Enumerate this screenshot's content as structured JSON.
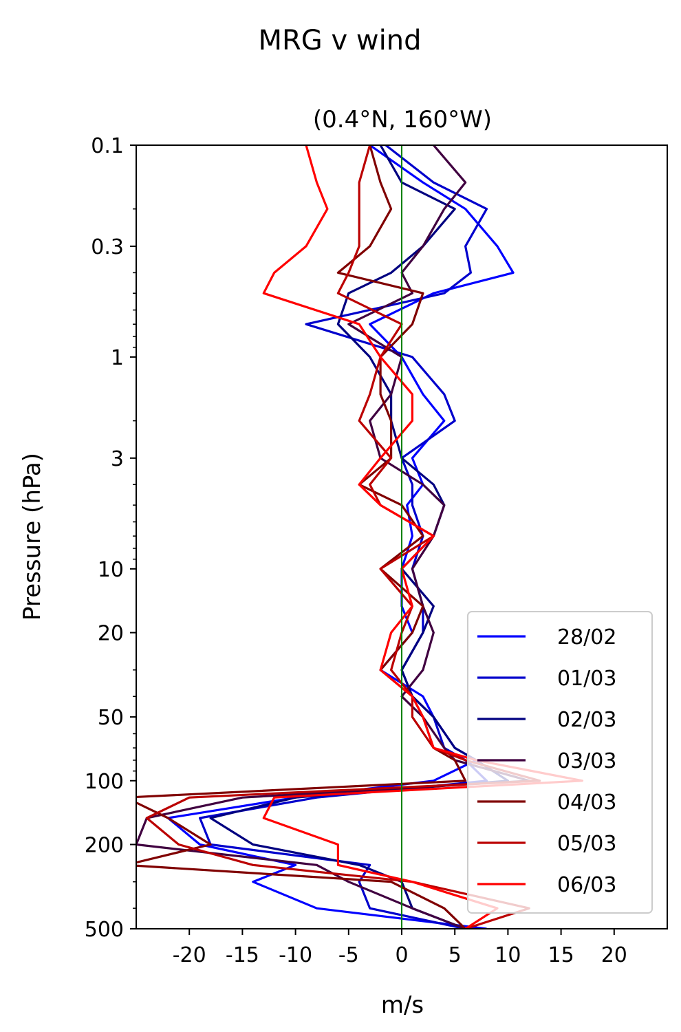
{
  "chart_data": {
    "type": "line",
    "title": "MRG v wind",
    "subtitle": "(0.4°N, 160°W)",
    "xlabel": "m/s",
    "ylabel": "Pressure (hPa)",
    "xlim": [
      -25,
      25
    ],
    "ylim": [
      500,
      0.1
    ],
    "yscale": "log",
    "xticks": [
      -20,
      -15,
      -10,
      -5,
      0,
      5,
      10,
      15,
      20
    ],
    "xtick_labels": [
      "-20",
      "-15",
      "-10",
      "-5",
      "0",
      "5",
      "10",
      "15",
      "20"
    ],
    "yticks": [
      0.1,
      0.3,
      1,
      3,
      10,
      20,
      50,
      100,
      200,
      500
    ],
    "ytick_labels": [
      "0.1",
      "0.3",
      "1",
      "3",
      "10",
      "20",
      "50",
      "100",
      "200",
      "500"
    ],
    "reference_line": {
      "x": 0,
      "color": "#008000"
    },
    "legend_position": "lower-right",
    "pressure_levels": [
      0.1,
      0.15,
      0.2,
      0.3,
      0.4,
      0.5,
      0.7,
      1,
      1.5,
      2,
      3,
      4,
      5,
      7,
      10,
      15,
      20,
      30,
      40,
      50,
      70,
      80,
      100,
      120,
      150,
      200,
      250,
      300,
      400,
      500
    ],
    "series": [
      {
        "name": "28/02",
        "color": "#0000ff",
        "values": [
          -3,
          2,
          6,
          9,
          10.5,
          3,
          -3,
          0,
          2,
          4,
          1,
          2,
          0.5,
          1,
          0,
          0,
          1,
          -2,
          2,
          3,
          5,
          7,
          3,
          -10,
          -22,
          -19,
          -10,
          -14,
          -8,
          8
        ]
      },
      {
        "name": "01/03",
        "color": "#0000cc",
        "values": [
          -1.5,
          3,
          8,
          6,
          6.5,
          4,
          -9,
          1,
          4,
          5,
          0,
          1,
          1,
          2,
          1,
          2,
          2,
          0,
          1,
          3,
          4,
          6,
          8,
          -8,
          -19,
          -18,
          -3,
          -4,
          -3,
          6
        ]
      },
      {
        "name": "02/03",
        "color": "#000080",
        "values": [
          -2,
          0,
          5,
          2,
          -1,
          -5,
          -6,
          -3,
          -1,
          -1,
          0,
          3,
          4,
          3,
          0,
          3,
          2,
          0,
          1,
          3,
          5,
          7,
          10,
          -10,
          -18,
          -14,
          -4,
          0,
          1,
          6
        ]
      },
      {
        "name": "03/03",
        "color": "#400040",
        "values": [
          3,
          6,
          4,
          2,
          0,
          1,
          -5,
          0,
          -1,
          -3,
          -2,
          2,
          4,
          3,
          1,
          2,
          3,
          2,
          0,
          2,
          4,
          5,
          12,
          -15,
          -24,
          -25,
          -8,
          -5,
          1,
          6
        ]
      },
      {
        "name": "04/03",
        "color": "#800000",
        "values": [
          -3,
          -2,
          -1,
          -3,
          -6,
          2,
          1,
          -2,
          -2,
          -1,
          -1,
          -4,
          0,
          2,
          -2,
          2,
          1,
          -2,
          1,
          2,
          3,
          5,
          6,
          -26,
          -22,
          -18,
          -26,
          -1,
          4,
          6
        ]
      },
      {
        "name": "05/03",
        "color": "#bb0000",
        "values": [
          -3,
          -4,
          -4,
          -4,
          -5,
          -6,
          0,
          -2,
          -3,
          -4,
          -1,
          -3,
          -2,
          3,
          -2,
          1,
          0,
          -1,
          1,
          1,
          3,
          6,
          13,
          -20,
          -24,
          -21,
          -14,
          1,
          12,
          6
        ]
      },
      {
        "name": "06/03",
        "color": "#ff0000",
        "values": [
          -9,
          -8,
          -7,
          -9,
          -12,
          -13,
          -4,
          -2,
          1,
          1,
          -2,
          -4,
          -2,
          3,
          0,
          1,
          -1,
          -2,
          1,
          2,
          3,
          7,
          17,
          -12,
          -13,
          -6,
          -6,
          1,
          9,
          6
        ]
      }
    ]
  }
}
